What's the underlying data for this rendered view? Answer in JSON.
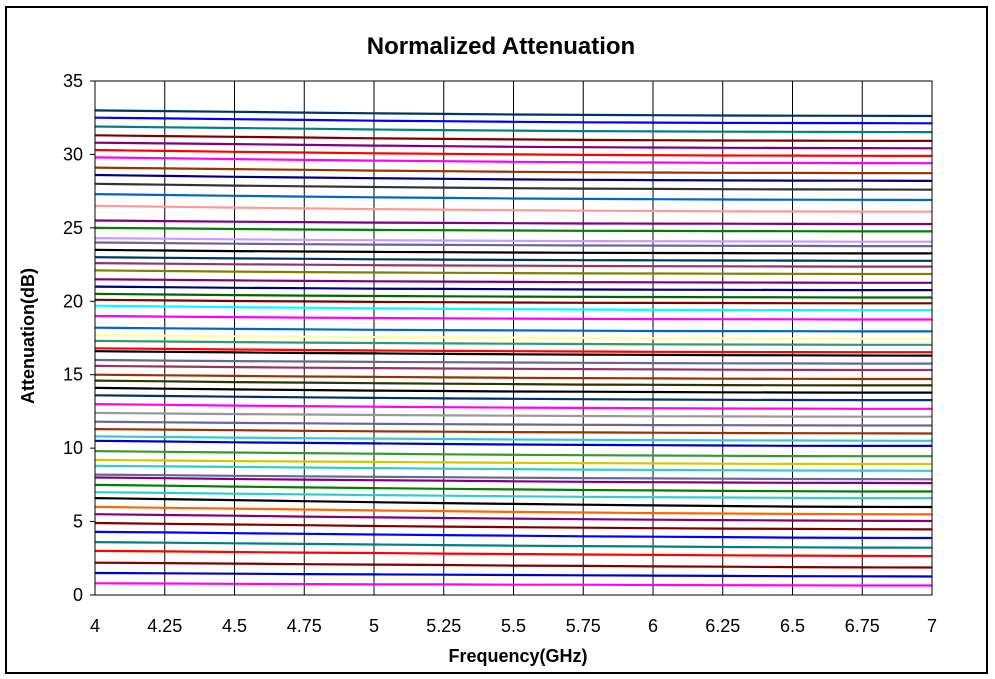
{
  "chart_data": {
    "type": "line",
    "title": "Normalized Attenuation",
    "xlabel": "Frequency(GHz)",
    "ylabel": "Attenuation(dB)",
    "xlim": [
      4,
      7
    ],
    "ylim": [
      0,
      35
    ],
    "x_ticks": [
      "4",
      "4.25",
      "4.5",
      "4.75",
      "5",
      "5.25",
      "5.5",
      "5.75",
      "6",
      "6.25",
      "6.5",
      "6.75",
      "7"
    ],
    "y_ticks": [
      "0",
      "5",
      "10",
      "15",
      "20",
      "25",
      "30",
      "35"
    ],
    "grid": "vertical",
    "legend": "none",
    "x": [
      4,
      4.25,
      4.5,
      4.75,
      5,
      5.25,
      5.5,
      5.75,
      6,
      6.25,
      6.5,
      6.75,
      7
    ],
    "series": [
      {
        "color": "#ff00ff",
        "values": [
          0.8,
          0.78,
          0.76,
          0.74,
          0.72,
          0.72,
          0.7,
          0.7,
          0.68,
          0.67,
          0.66,
          0.65,
          0.65
        ]
      },
      {
        "color": "#0000cc",
        "values": [
          1.5,
          1.48,
          1.45,
          1.42,
          1.4,
          1.38,
          1.36,
          1.34,
          1.32,
          1.3,
          1.28,
          1.27,
          1.26
        ]
      },
      {
        "color": "#800000",
        "values": [
          2.2,
          2.17,
          2.14,
          2.1,
          2.07,
          2.04,
          2.0,
          1.98,
          1.95,
          1.93,
          1.9,
          1.88,
          1.87
        ]
      },
      {
        "color": "#ff0000",
        "values": [
          3.0,
          2.97,
          2.93,
          2.89,
          2.86,
          2.82,
          2.79,
          2.76,
          2.73,
          2.7,
          2.68,
          2.66,
          2.65
        ]
      },
      {
        "color": "#008080",
        "values": [
          3.6,
          3.56,
          3.52,
          3.48,
          3.44,
          3.4,
          3.36,
          3.33,
          3.3,
          3.27,
          3.25,
          3.23,
          3.22
        ]
      },
      {
        "color": "#0000ff",
        "values": [
          4.3,
          4.26,
          4.21,
          4.17,
          4.12,
          4.08,
          4.04,
          4.0,
          3.97,
          3.94,
          3.91,
          3.89,
          3.88
        ]
      },
      {
        "color": "#800000",
        "values": [
          4.9,
          4.85,
          4.8,
          4.75,
          4.7,
          4.66,
          4.62,
          4.58,
          4.55,
          4.52,
          4.5,
          4.48,
          4.47
        ]
      },
      {
        "color": "#800080",
        "values": [
          5.5,
          5.45,
          5.4,
          5.34,
          5.29,
          5.24,
          5.2,
          5.16,
          5.13,
          5.1,
          5.07,
          5.05,
          5.04
        ]
      },
      {
        "color": "#ff6600",
        "values": [
          6.0,
          5.94,
          5.88,
          5.82,
          5.76,
          5.71,
          5.66,
          5.62,
          5.58,
          5.55,
          5.52,
          5.5,
          5.49
        ]
      },
      {
        "color": "#000000",
        "values": [
          6.6,
          6.53,
          6.46,
          6.39,
          6.32,
          6.26,
          6.2,
          6.15,
          6.1,
          6.06,
          6.02,
          6.0,
          5.99
        ]
      },
      {
        "color": "#33cccc",
        "values": [
          7.0,
          6.95,
          6.9,
          6.85,
          6.8,
          6.76,
          6.72,
          6.69,
          6.66,
          6.64,
          6.62,
          6.6,
          6.6
        ]
      },
      {
        "color": "#008000",
        "values": [
          7.5,
          7.44,
          7.38,
          7.33,
          7.28,
          7.23,
          7.19,
          7.15,
          7.12,
          7.09,
          7.07,
          7.05,
          7.05
        ]
      },
      {
        "color": "#800080",
        "values": [
          8.0,
          7.95,
          7.9,
          7.86,
          7.82,
          7.78,
          7.74,
          7.71,
          7.68,
          7.66,
          7.64,
          7.63,
          7.62
        ]
      },
      {
        "color": "#666699",
        "values": [
          8.2,
          8.16,
          8.12,
          8.08,
          8.05,
          8.02,
          7.99,
          7.96,
          7.94,
          7.92,
          7.9,
          7.89,
          7.88
        ]
      },
      {
        "color": "#33cccc",
        "values": [
          8.8,
          8.76,
          8.72,
          8.68,
          8.64,
          8.6,
          8.57,
          8.54,
          8.52,
          8.5,
          8.48,
          8.47,
          8.46
        ]
      },
      {
        "color": "#cccc00",
        "values": [
          9.2,
          9.16,
          9.12,
          9.09,
          9.06,
          9.03,
          9.0,
          8.98,
          8.96,
          8.94,
          8.93,
          8.92,
          8.92
        ]
      },
      {
        "color": "#339933",
        "values": [
          9.8,
          9.75,
          9.7,
          9.66,
          9.62,
          9.58,
          9.55,
          9.52,
          9.5,
          9.48,
          9.46,
          9.45,
          9.45
        ]
      },
      {
        "color": "#0000cc",
        "values": [
          10.5,
          10.45,
          10.4,
          10.36,
          10.32,
          10.28,
          10.25,
          10.22,
          10.2,
          10.18,
          10.16,
          10.15,
          10.15
        ]
      },
      {
        "color": "#33cccc",
        "values": [
          10.8,
          10.76,
          10.72,
          10.68,
          10.65,
          10.62,
          10.59,
          10.57,
          10.55,
          10.53,
          10.52,
          10.51,
          10.5
        ]
      },
      {
        "color": "#993300",
        "values": [
          11.3,
          11.26,
          11.22,
          11.18,
          11.15,
          11.12,
          11.09,
          11.07,
          11.05,
          11.03,
          11.02,
          11.01,
          11.0
        ]
      },
      {
        "color": "#666699",
        "values": [
          11.8,
          11.76,
          11.72,
          11.69,
          11.66,
          11.63,
          11.61,
          11.59,
          11.57,
          11.56,
          11.55,
          11.54,
          11.54
        ]
      },
      {
        "color": "#999999",
        "values": [
          12.4,
          12.36,
          12.32,
          12.29,
          12.26,
          12.23,
          12.21,
          12.19,
          12.17,
          12.16,
          12.15,
          12.14,
          12.14
        ]
      },
      {
        "color": "#ff00ff",
        "values": [
          13.0,
          12.95,
          12.9,
          12.86,
          12.82,
          12.79,
          12.76,
          12.74,
          12.72,
          12.7,
          12.69,
          12.68,
          12.68
        ]
      },
      {
        "color": "#003366",
        "values": [
          13.6,
          13.55,
          13.5,
          13.46,
          13.42,
          13.39,
          13.36,
          13.33,
          13.31,
          13.29,
          13.28,
          13.27,
          13.27
        ]
      },
      {
        "color": "#000000",
        "values": [
          14.1,
          14.05,
          14.0,
          13.96,
          13.92,
          13.89,
          13.86,
          13.84,
          13.82,
          13.8,
          13.79,
          13.78,
          13.78
        ]
      },
      {
        "color": "#333300",
        "values": [
          14.6,
          14.55,
          14.5,
          14.46,
          14.42,
          14.39,
          14.36,
          14.33,
          14.31,
          14.29,
          14.28,
          14.27,
          14.27
        ]
      },
      {
        "color": "#993300",
        "values": [
          15.0,
          14.96,
          14.92,
          14.88,
          14.85,
          14.82,
          14.79,
          14.77,
          14.75,
          14.73,
          14.72,
          14.71,
          14.71
        ]
      },
      {
        "color": "#993366",
        "values": [
          15.6,
          15.56,
          15.52,
          15.48,
          15.45,
          15.42,
          15.4,
          15.38,
          15.36,
          15.34,
          15.33,
          15.32,
          15.32
        ]
      },
      {
        "color": "#666699",
        "values": [
          16.0,
          15.96,
          15.93,
          15.9,
          15.87,
          15.85,
          15.83,
          15.81,
          15.79,
          15.78,
          15.77,
          15.76,
          15.76
        ]
      },
      {
        "color": "#000000",
        "values": [
          16.6,
          16.56,
          16.52,
          16.48,
          16.45,
          16.42,
          16.39,
          16.37,
          16.35,
          16.33,
          16.32,
          16.31,
          16.3
        ]
      },
      {
        "color": "#ff0000",
        "values": [
          16.8,
          16.76,
          16.72,
          16.68,
          16.65,
          16.62,
          16.6,
          16.58,
          16.56,
          16.55,
          16.54,
          16.53,
          16.53
        ]
      },
      {
        "color": "#339966",
        "values": [
          17.3,
          17.26,
          17.22,
          17.19,
          17.16,
          17.13,
          17.11,
          17.09,
          17.07,
          17.06,
          17.05,
          17.04,
          17.04
        ]
      },
      {
        "color": "#ffff99",
        "values": [
          17.7,
          17.66,
          17.62,
          17.59,
          17.56,
          17.54,
          17.52,
          17.5,
          17.48,
          17.47,
          17.46,
          17.45,
          17.45
        ]
      },
      {
        "color": "#0066cc",
        "values": [
          18.2,
          18.16,
          18.12,
          18.09,
          18.06,
          18.04,
          18.02,
          18.0,
          17.98,
          17.97,
          17.96,
          17.95,
          17.95
        ]
      },
      {
        "color": "#ff00ff",
        "values": [
          19.0,
          18.96,
          18.92,
          18.89,
          18.86,
          18.84,
          18.82,
          18.8,
          18.79,
          18.78,
          18.77,
          18.76,
          18.76
        ]
      },
      {
        "color": "#00ffff",
        "values": [
          19.7,
          19.65,
          19.6,
          19.56,
          19.52,
          19.49,
          19.46,
          19.44,
          19.42,
          19.41,
          19.4,
          19.39,
          19.39
        ]
      },
      {
        "color": "#800000",
        "values": [
          20.1,
          20.06,
          20.02,
          19.99,
          19.96,
          19.94,
          19.92,
          19.9,
          19.89,
          19.88,
          19.87,
          19.86,
          19.86
        ]
      },
      {
        "color": "#006600",
        "values": [
          20.5,
          20.46,
          20.42,
          20.39,
          20.36,
          20.34,
          20.32,
          20.3,
          20.29,
          20.28,
          20.27,
          20.26,
          20.26
        ]
      },
      {
        "color": "#000080",
        "values": [
          21.0,
          20.96,
          20.92,
          20.89,
          20.86,
          20.84,
          20.82,
          20.8,
          20.79,
          20.78,
          20.77,
          20.76,
          20.76
        ]
      },
      {
        "color": "#800080",
        "values": [
          21.5,
          21.46,
          21.42,
          21.39,
          21.36,
          21.34,
          21.32,
          21.3,
          21.29,
          21.28,
          21.27,
          21.26,
          21.26
        ]
      },
      {
        "color": "#808000",
        "values": [
          22.1,
          22.06,
          22.02,
          21.99,
          21.96,
          21.94,
          21.92,
          21.9,
          21.89,
          21.88,
          21.87,
          21.86,
          21.86
        ]
      },
      {
        "color": "#993366",
        "values": [
          22.6,
          22.56,
          22.52,
          22.49,
          22.46,
          22.44,
          22.42,
          22.4,
          22.39,
          22.38,
          22.37,
          22.36,
          22.36
        ]
      },
      {
        "color": "#003366",
        "values": [
          23.0,
          22.96,
          22.92,
          22.89,
          22.86,
          22.84,
          22.82,
          22.8,
          22.79,
          22.78,
          22.77,
          22.76,
          22.76
        ]
      },
      {
        "color": "#000000",
        "values": [
          23.5,
          23.46,
          23.42,
          23.39,
          23.36,
          23.34,
          23.32,
          23.3,
          23.29,
          23.28,
          23.27,
          23.26,
          23.26
        ]
      },
      {
        "color": "#666699",
        "values": [
          24.0,
          23.96,
          23.92,
          23.89,
          23.86,
          23.84,
          23.82,
          23.8,
          23.79,
          23.78,
          23.77,
          23.76,
          23.76
        ]
      },
      {
        "color": "#cc99ff",
        "values": [
          24.3,
          24.26,
          24.22,
          24.19,
          24.16,
          24.14,
          24.12,
          24.1,
          24.09,
          24.08,
          24.07,
          24.06,
          24.06
        ]
      },
      {
        "color": "#008000",
        "values": [
          25.0,
          24.96,
          24.92,
          24.89,
          24.86,
          24.84,
          24.82,
          24.8,
          24.79,
          24.78,
          24.77,
          24.76,
          24.76
        ]
      },
      {
        "color": "#800080",
        "values": [
          25.5,
          25.46,
          25.42,
          25.39,
          25.36,
          25.34,
          25.32,
          25.3,
          25.29,
          25.28,
          25.27,
          25.26,
          25.26
        ]
      },
      {
        "color": "#ff9999",
        "values": [
          26.5,
          26.44,
          26.38,
          26.33,
          26.28,
          26.24,
          26.2,
          26.17,
          26.15,
          26.13,
          26.12,
          26.11,
          26.1
        ]
      },
      {
        "color": "#0066cc",
        "values": [
          27.3,
          27.24,
          27.18,
          27.13,
          27.08,
          27.04,
          27.0,
          26.97,
          26.95,
          26.93,
          26.92,
          26.91,
          26.9
        ]
      },
      {
        "color": "#333333",
        "values": [
          28.0,
          27.94,
          27.88,
          27.83,
          27.78,
          27.74,
          27.7,
          27.67,
          27.65,
          27.63,
          27.62,
          27.61,
          27.6
        ]
      },
      {
        "color": "#000080",
        "values": [
          28.6,
          28.54,
          28.48,
          28.43,
          28.38,
          28.34,
          28.3,
          28.27,
          28.25,
          28.23,
          28.22,
          28.21,
          28.2
        ]
      },
      {
        "color": "#993300",
        "values": [
          29.1,
          29.05,
          29.0,
          28.95,
          28.9,
          28.86,
          28.82,
          28.79,
          28.77,
          28.75,
          28.74,
          28.73,
          28.72
        ]
      },
      {
        "color": "#ff00ff",
        "values": [
          29.8,
          29.74,
          29.68,
          29.63,
          29.58,
          29.54,
          29.5,
          29.47,
          29.45,
          29.43,
          29.42,
          29.41,
          29.4
        ]
      },
      {
        "color": "#ff0000",
        "values": [
          30.3,
          30.24,
          30.18,
          30.13,
          30.08,
          30.04,
          30.0,
          29.97,
          29.95,
          29.93,
          29.92,
          29.91,
          29.9
        ]
      },
      {
        "color": "#800080",
        "values": [
          30.8,
          30.75,
          30.7,
          30.65,
          30.6,
          30.56,
          30.52,
          30.49,
          30.47,
          30.45,
          30.44,
          30.43,
          30.42
        ]
      },
      {
        "color": "#800000",
        "values": [
          31.3,
          31.25,
          31.2,
          31.15,
          31.1,
          31.06,
          31.02,
          30.99,
          30.97,
          30.95,
          30.94,
          30.93,
          30.92
        ]
      },
      {
        "color": "#008080",
        "values": [
          31.9,
          31.85,
          31.8,
          31.75,
          31.7,
          31.66,
          31.62,
          31.59,
          31.57,
          31.55,
          31.54,
          31.53,
          31.52
        ]
      },
      {
        "color": "#0000ff",
        "values": [
          32.5,
          32.45,
          32.4,
          32.35,
          32.3,
          32.26,
          32.22,
          32.19,
          32.17,
          32.15,
          32.14,
          32.13,
          32.12
        ]
      },
      {
        "color": "#003366",
        "values": [
          33.0,
          32.95,
          32.9,
          32.85,
          32.8,
          32.76,
          32.72,
          32.69,
          32.67,
          32.65,
          32.64,
          32.63,
          32.62
        ]
      }
    ]
  }
}
